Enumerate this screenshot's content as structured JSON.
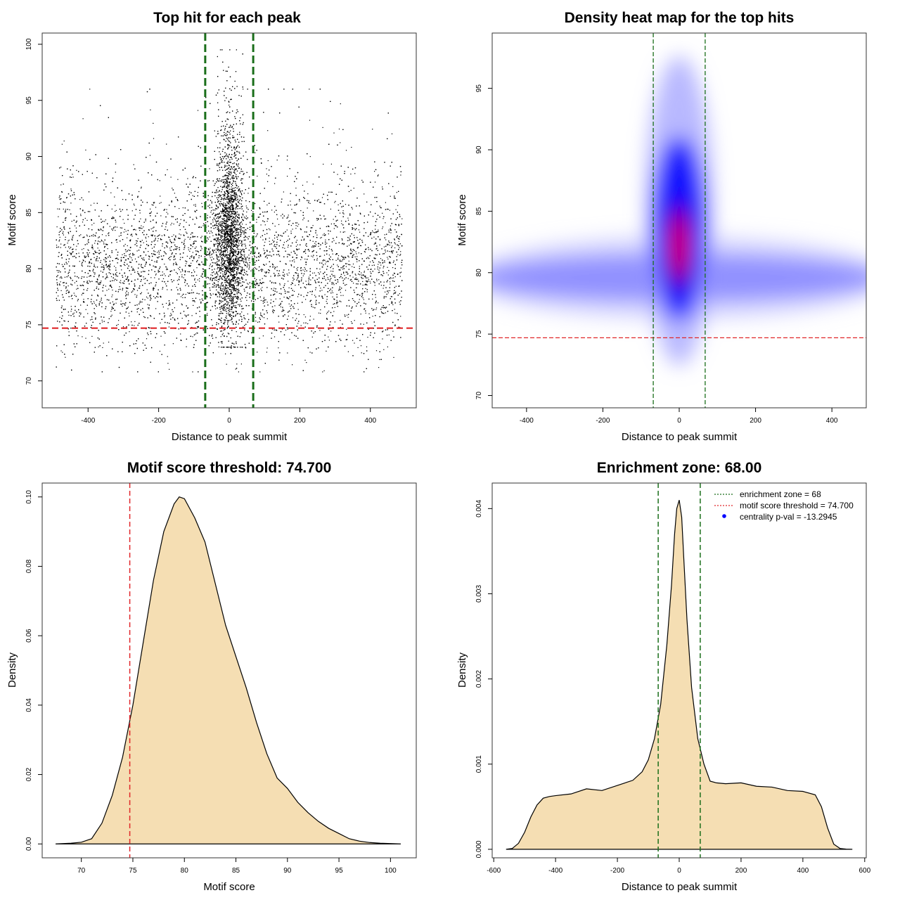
{
  "colors": {
    "threshold_line": "#e0272a",
    "zone_line": "#1a6e1a",
    "density_fill": "#f5deb3",
    "heat_low": "#ffffff",
    "heat_mid": "#0000ff",
    "heat_high": "#ff0000",
    "legend_point": "#0000ff"
  },
  "chart_data": [
    {
      "id": "scatter",
      "type": "scatter",
      "title": "Top hit for each peak",
      "xlabel": "Distance to peak summit",
      "ylabel": "Motif score",
      "xlim": [
        -530,
        530
      ],
      "ylim": [
        67.6,
        101
      ],
      "xticks": [
        -400,
        -200,
        0,
        200,
        400
      ],
      "yticks": [
        70,
        75,
        80,
        85,
        90,
        95,
        100
      ],
      "grid": false,
      "threshold_y": 74.7,
      "zone_x": [
        -68,
        68
      ],
      "point_summary": {
        "background": {
          "x_range": [
            -490,
            490
          ],
          "y_center": 80,
          "y_spread": 3.5,
          "approx_count": 9000
        },
        "central_cluster": {
          "x_center": 0,
          "x_spread": 20,
          "y_center": 82,
          "y_spread": 4,
          "y_max": 99.5,
          "approx_count": 5000
        }
      }
    },
    {
      "id": "heatmap",
      "type": "heatmap",
      "title": "Density heat map for the top hits",
      "xlabel": "Distance to peak summit",
      "ylabel": "Motif score",
      "xlim": [
        -490,
        490
      ],
      "ylim": [
        69,
        99.5
      ],
      "xticks": [
        -400,
        -200,
        0,
        200,
        400
      ],
      "yticks": [
        70,
        75,
        80,
        85,
        90,
        95
      ],
      "grid": false,
      "threshold_y": 74.7,
      "zone_x": [
        -68,
        68
      ],
      "density_summary": {
        "peak": {
          "x": 0,
          "y": 82,
          "intensity": "high"
        },
        "band": {
          "y": 79.5,
          "x_range": [
            -490,
            490
          ],
          "intensity": "medium"
        }
      }
    },
    {
      "id": "score_density",
      "type": "area",
      "title": "Motif score threshold: 74.700",
      "xlabel": "Motif score",
      "ylabel": "Density",
      "xlim": [
        66.2,
        102.5
      ],
      "ylim": [
        -0.004,
        0.104
      ],
      "xticks": [
        70,
        75,
        80,
        85,
        90,
        95,
        100
      ],
      "yticks": [
        0.0,
        0.02,
        0.04,
        0.06,
        0.08,
        0.1
      ],
      "ytick_labels": [
        "0.00",
        "0.02",
        "0.04",
        "0.06",
        "0.08",
        "0.10"
      ],
      "grid": false,
      "threshold_x": 74.7,
      "x": [
        67.5,
        69,
        70,
        71,
        72,
        73,
        74,
        75,
        76,
        77,
        78,
        79,
        79.5,
        80,
        81,
        82,
        83,
        84,
        85,
        86,
        87,
        88,
        89,
        90,
        91,
        92,
        93,
        94,
        95,
        96,
        97,
        98,
        99,
        100,
        101
      ],
      "y": [
        0.0,
        0.0002,
        0.0005,
        0.0015,
        0.006,
        0.014,
        0.025,
        0.04,
        0.058,
        0.076,
        0.09,
        0.098,
        0.1,
        0.0995,
        0.094,
        0.087,
        0.075,
        0.063,
        0.054,
        0.045,
        0.035,
        0.026,
        0.019,
        0.016,
        0.012,
        0.009,
        0.0065,
        0.0045,
        0.003,
        0.0015,
        0.0008,
        0.0004,
        0.0002,
        0.0001,
        0.0
      ]
    },
    {
      "id": "distance_density",
      "type": "area",
      "title": "Enrichment zone: 68.00",
      "xlabel": "Distance to peak summit",
      "ylabel": "Density",
      "xlim": [
        -605,
        605
      ],
      "ylim": [
        -0.0001,
        0.0043
      ],
      "xticks": [
        -600,
        -400,
        -200,
        0,
        200,
        400,
        600
      ],
      "yticks": [
        0.0,
        0.001,
        0.002,
        0.003,
        0.004
      ],
      "ytick_labels": [
        "0.000",
        "0.001",
        "0.002",
        "0.003",
        "0.004"
      ],
      "grid": false,
      "zone_x": [
        -68,
        68
      ],
      "legend_position": "top-right",
      "legend": [
        {
          "label": "enrichment zone = 68",
          "style": "dotted-line",
          "color": "#1a6e1a"
        },
        {
          "label": "motif score threshold = 74.700",
          "style": "dotted-line",
          "color": "#e0272a"
        },
        {
          "label": "centrality p-val = -13.2945",
          "style": "point",
          "color": "#0000ff"
        }
      ],
      "x": [
        -560,
        -540,
        -520,
        -500,
        -480,
        -460,
        -440,
        -420,
        -400,
        -350,
        -300,
        -250,
        -200,
        -150,
        -120,
        -100,
        -80,
        -60,
        -40,
        -25,
        -15,
        -8,
        0,
        8,
        15,
        25,
        40,
        60,
        80,
        100,
        120,
        150,
        200,
        250,
        300,
        350,
        400,
        440,
        460,
        480,
        500,
        520,
        540,
        560
      ],
      "y": [
        0.0,
        1e-05,
        7e-05,
        0.0002,
        0.00038,
        0.00052,
        0.0006,
        0.00062,
        0.00063,
        0.00065,
        0.00071,
        0.00069,
        0.00075,
        0.00081,
        0.00091,
        0.00105,
        0.0013,
        0.0017,
        0.0024,
        0.0031,
        0.0037,
        0.004,
        0.0041,
        0.0039,
        0.0034,
        0.0027,
        0.0019,
        0.0013,
        0.001,
        0.0008,
        0.00078,
        0.00077,
        0.00078,
        0.00074,
        0.00073,
        0.00069,
        0.00068,
        0.00064,
        0.0005,
        0.00025,
        6e-05,
        1e-05,
        2e-06,
        0.0
      ]
    }
  ]
}
